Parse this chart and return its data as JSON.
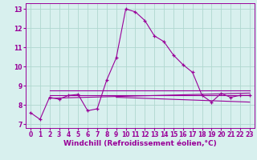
{
  "xlabel": "Windchill (Refroidissement éolien,°C)",
  "xlabel_fontsize": 6.5,
  "background_color": "#d8f0ee",
  "line_color": "#990099",
  "grid_color": "#b0d8d0",
  "xlim": [
    -0.5,
    23.5
  ],
  "ylim": [
    6.8,
    13.3
  ],
  "xticks": [
    0,
    1,
    2,
    3,
    4,
    5,
    6,
    7,
    8,
    9,
    10,
    11,
    12,
    13,
    14,
    15,
    16,
    17,
    18,
    19,
    20,
    21,
    22,
    23
  ],
  "yticks": [
    7,
    8,
    9,
    10,
    11,
    12,
    13
  ],
  "main_x": [
    0,
    1,
    2,
    3,
    4,
    5,
    6,
    7,
    8,
    9,
    10,
    11,
    12,
    13,
    14,
    15,
    16,
    17,
    18,
    19,
    20,
    21,
    22,
    23
  ],
  "main_y": [
    7.6,
    7.25,
    8.4,
    8.3,
    8.5,
    8.55,
    7.7,
    7.8,
    9.3,
    10.45,
    13.0,
    12.85,
    12.4,
    11.6,
    11.3,
    10.6,
    10.1,
    9.7,
    8.5,
    8.15,
    8.6,
    8.4,
    8.5,
    8.5
  ],
  "line2_x": [
    2,
    23
  ],
  "line2_y": [
    8.75,
    8.75
  ],
  "line3_x": [
    2,
    23
  ],
  "line3_y": [
    8.5,
    8.5
  ],
  "line4_x": [
    2,
    23
  ],
  "line4_y": [
    8.35,
    8.62
  ],
  "line5_x": [
    9,
    23
  ],
  "line5_y": [
    8.4,
    8.15
  ]
}
